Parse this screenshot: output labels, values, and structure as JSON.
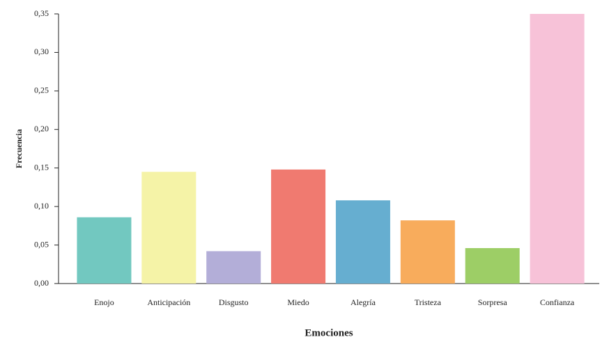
{
  "chart_data": {
    "type": "bar",
    "x_label": "Emociones",
    "y_label": "Frecuencia",
    "categories": [
      "Enojo",
      "Anticipación",
      "Disgusto",
      "Miedo",
      "Alegría",
      "Tristeza",
      "Sorpresa",
      "Confianza"
    ],
    "values": [
      0.086,
      0.145,
      0.042,
      0.148,
      0.108,
      0.082,
      0.046,
      0.35
    ],
    "colors": [
      "#72c8c0",
      "#f5f3a7",
      "#b3aed8",
      "#f07a70",
      "#66aed0",
      "#f8ac5c",
      "#9dce66",
      "#f7c2d8"
    ],
    "ylim": [
      0,
      0.35
    ],
    "yticks": [
      {
        "value": 0,
        "label": "0,00"
      },
      {
        "value": 0.05,
        "label": "0,05"
      },
      {
        "value": 0.1,
        "label": "0,10"
      },
      {
        "value": 0.15,
        "label": "0,15"
      },
      {
        "value": 0.2,
        "label": "0,20"
      },
      {
        "value": 0.25,
        "label": "0,25"
      },
      {
        "value": 0.3,
        "label": "0,30"
      },
      {
        "value": 0.35,
        "label": "0,35"
      }
    ],
    "grid": false
  }
}
